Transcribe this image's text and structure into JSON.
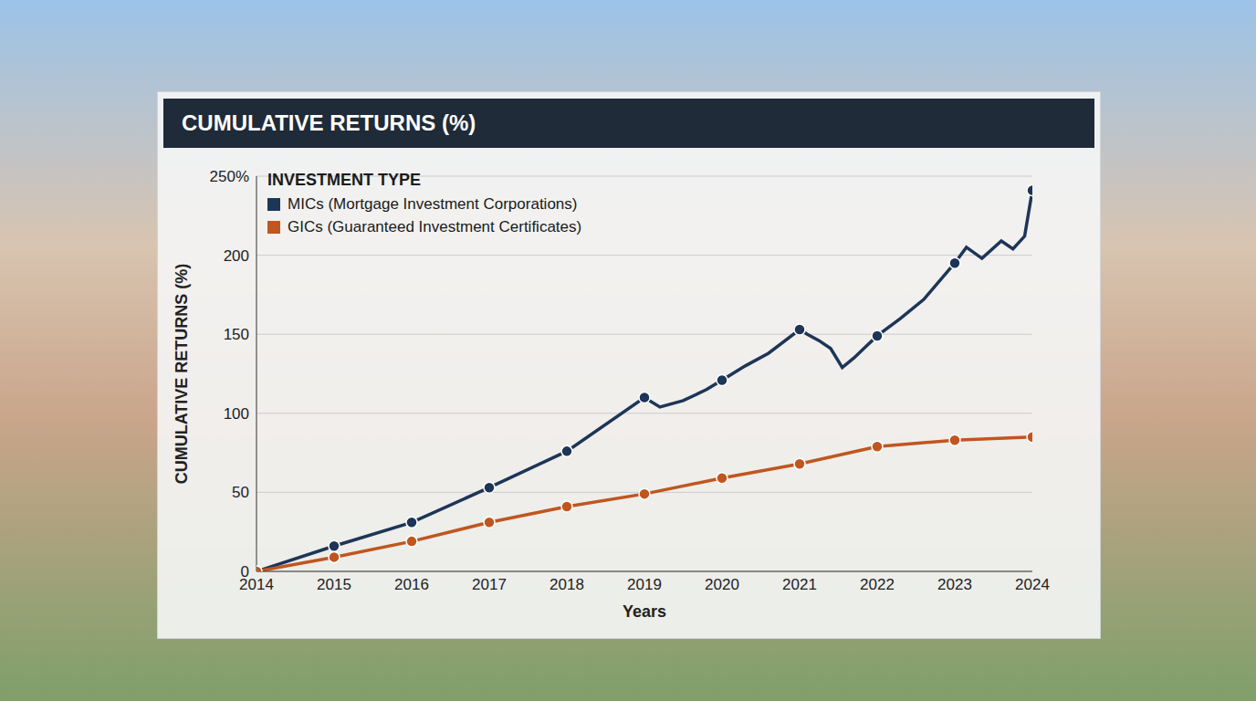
{
  "chart_data": {
    "type": "line",
    "title": "CUMULATIVE RETURNS (%)",
    "x_label": "Years",
    "y_label": "CUMULATIVE RETURNS (%)",
    "legend_title": "INVESTMENT TYPE",
    "legend": "top-left",
    "grid": true,
    "xlim": [
      2014,
      2024
    ],
    "xticks": [
      2014,
      2015,
      2016,
      2017,
      2018,
      2019,
      2020,
      2021,
      2022,
      2023,
      2024
    ],
    "ylim": [
      0,
      250
    ],
    "yticks": [
      0,
      50,
      100,
      150,
      200,
      {
        "value": 250,
        "label": "250%"
      }
    ],
    "series": [
      {
        "name": "MICs (Mortgage Investment Corporations)",
        "color": "#1d3557",
        "marker": "circle",
        "x": [
          2014,
          2015,
          2016,
          2017,
          2018,
          2019,
          2019.2,
          2019.5,
          2019.8,
          2020,
          2020.3,
          2020.6,
          2021,
          2021.1,
          2021.25,
          2021.4,
          2021.55,
          2021.7,
          2021.85,
          2022,
          2022.3,
          2022.6,
          2023,
          2023.15,
          2023.35,
          2023.6,
          2023.75,
          2023.9,
          2024
        ],
        "values": [
          0,
          16,
          31,
          53,
          76,
          110,
          104,
          108,
          115,
          121,
          130,
          138,
          153,
          150,
          146,
          141,
          129,
          135,
          142,
          149,
          160,
          172,
          195,
          205,
          198,
          209,
          204,
          212,
          241
        ]
      },
      {
        "name": "GICs (Guaranteed Investment Certificates)",
        "color": "#c0561f",
        "marker": "circle",
        "x": [
          2014,
          2015,
          2016,
          2017,
          2018,
          2019,
          2020,
          2021,
          2022,
          2023,
          2024
        ],
        "values": [
          0,
          9,
          19,
          31,
          41,
          49,
          59,
          68,
          79,
          83,
          85
        ]
      }
    ]
  }
}
